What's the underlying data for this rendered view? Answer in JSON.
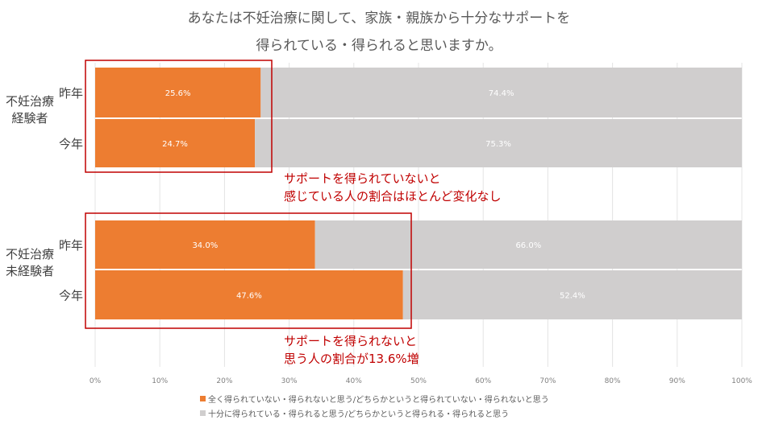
{
  "chart_data": {
    "type": "bar",
    "orientation": "horizontal-stacked-100",
    "title_lines": [
      "あなたは不妊治療に関して、家族・親族から十分なサポートを",
      "得られている・得られると思いますか。"
    ],
    "groups": [
      {
        "label": "不妊治療\n経験者",
        "label_lines": [
          "不妊治療",
          "経験者"
        ],
        "categories": [
          "昨年",
          "今年"
        ]
      },
      {
        "label": "不妊治療\n未経験者",
        "label_lines": [
          "不妊治療",
          "未経験者"
        ],
        "categories": [
          "昨年",
          "今年"
        ]
      }
    ],
    "series": [
      {
        "name": "全く得られていない・得られないと思う/どちらかというと得られていない・得られないと思う",
        "color": "#ed7d31",
        "values": [
          25.6,
          24.7,
          34.0,
          47.6
        ]
      },
      {
        "name": "十分に得られている・得られると思う/どちらかというと得られる・得られると思う",
        "color": "#d0cece",
        "values": [
          74.4,
          75.3,
          66.0,
          52.4
        ]
      }
    ],
    "xlim": [
      0,
      100
    ],
    "xticks": [
      "0%",
      "10%",
      "20%",
      "30%",
      "40%",
      "50%",
      "60%",
      "70%",
      "80%",
      "90%",
      "100%"
    ],
    "grid": true,
    "legend_position": "bottom",
    "annotations": [
      {
        "lines": [
          "サポートを得られていないと",
          "感じている人の割合はほとんど変化なし"
        ]
      },
      {
        "lines": [
          "サポートを得られないと",
          "思う人の割合が13.6%増"
        ]
      }
    ]
  }
}
